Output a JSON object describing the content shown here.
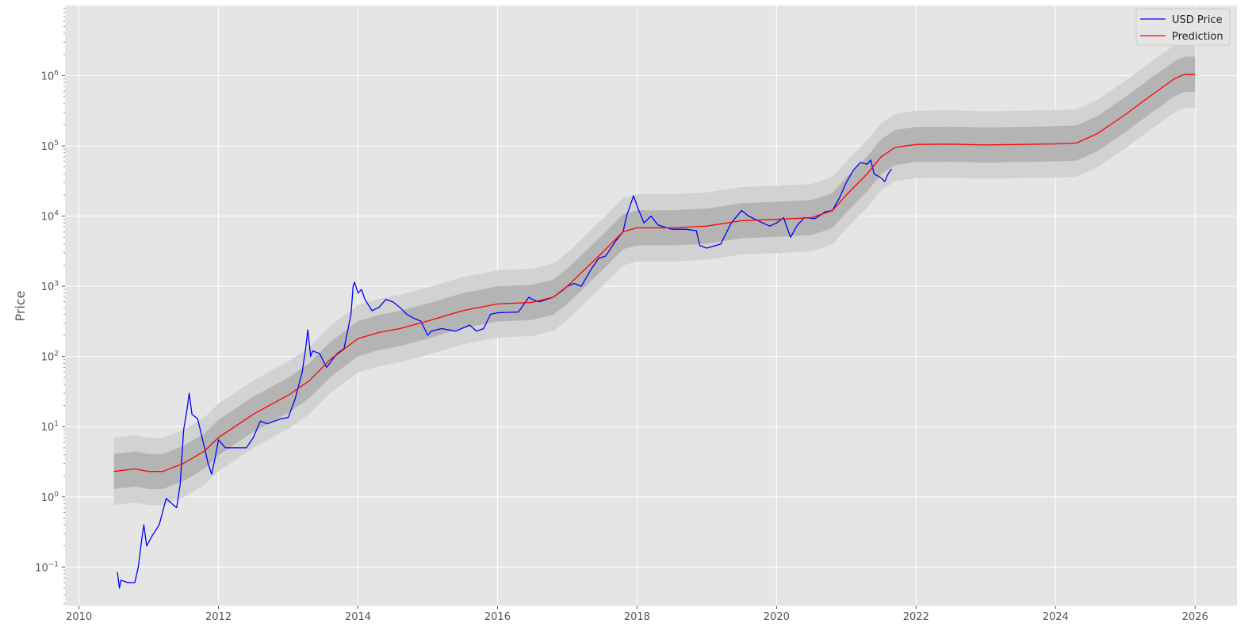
{
  "chart_data": {
    "type": "line",
    "title": "",
    "xlabel": "",
    "ylabel": "Price",
    "yscale": "log",
    "grid": true,
    "legend_position": "top-right",
    "xlim": [
      2009.8,
      2026.6
    ],
    "ylim_log10": [
      -1.55,
      7.0
    ],
    "x_ticks": [
      2010,
      2012,
      2014,
      2016,
      2018,
      2020,
      2022,
      2024,
      2026
    ],
    "x_tick_labels": [
      "2010",
      "2012",
      "2014",
      "2016",
      "2018",
      "2020",
      "2022",
      "2024",
      "2026"
    ],
    "y_ticks_log10": [
      -1,
      0,
      1,
      2,
      3,
      4,
      5,
      6
    ],
    "y_tick_labels": [
      {
        "base": "10",
        "exp": "−1"
      },
      {
        "base": "10",
        "exp": "0"
      },
      {
        "base": "10",
        "exp": "1"
      },
      {
        "base": "10",
        "exp": "2"
      },
      {
        "base": "10",
        "exp": "3"
      },
      {
        "base": "10",
        "exp": "4"
      },
      {
        "base": "10",
        "exp": "5"
      },
      {
        "base": "10",
        "exp": "6"
      }
    ],
    "bands": {
      "inner_log10_halfwidth": 0.25,
      "outer_log10_halfwidth": 0.48,
      "inner_color": "#b4b4b4",
      "outer_color": "#d2d2d2"
    },
    "series": [
      {
        "name": "USD Price",
        "color": "#0000ff",
        "points": [
          [
            2010.55,
            0.085
          ],
          [
            2010.58,
            0.05
          ],
          [
            2010.6,
            0.065
          ],
          [
            2010.7,
            0.06
          ],
          [
            2010.8,
            0.06
          ],
          [
            2010.85,
            0.1
          ],
          [
            2010.9,
            0.25
          ],
          [
            2010.93,
            0.4
          ],
          [
            2010.97,
            0.2
          ],
          [
            2011.05,
            0.28
          ],
          [
            2011.15,
            0.4
          ],
          [
            2011.25,
            0.95
          ],
          [
            2011.3,
            0.85
          ],
          [
            2011.4,
            0.7
          ],
          [
            2011.45,
            1.5
          ],
          [
            2011.5,
            9
          ],
          [
            2011.55,
            18
          ],
          [
            2011.58,
            30
          ],
          [
            2011.62,
            15
          ],
          [
            2011.7,
            13
          ],
          [
            2011.8,
            5
          ],
          [
            2011.85,
            3
          ],
          [
            2011.9,
            2.1
          ],
          [
            2011.95,
            3.5
          ],
          [
            2012.0,
            6.5
          ],
          [
            2012.1,
            5
          ],
          [
            2012.2,
            5
          ],
          [
            2012.4,
            5
          ],
          [
            2012.5,
            7
          ],
          [
            2012.6,
            12
          ],
          [
            2012.7,
            11
          ],
          [
            2012.8,
            12
          ],
          [
            2012.9,
            13
          ],
          [
            2013.0,
            13.5
          ],
          [
            2013.1,
            25
          ],
          [
            2013.2,
            60
          ],
          [
            2013.25,
            130
          ],
          [
            2013.28,
            240
          ],
          [
            2013.32,
            100
          ],
          [
            2013.35,
            120
          ],
          [
            2013.45,
            110
          ],
          [
            2013.55,
            70
          ],
          [
            2013.7,
            110
          ],
          [
            2013.8,
            130
          ],
          [
            2013.9,
            400
          ],
          [
            2013.93,
            1000
          ],
          [
            2013.95,
            1150
          ],
          [
            2014.0,
            800
          ],
          [
            2014.05,
            900
          ],
          [
            2014.1,
            650
          ],
          [
            2014.2,
            450
          ],
          [
            2014.3,
            500
          ],
          [
            2014.4,
            650
          ],
          [
            2014.5,
            600
          ],
          [
            2014.6,
            500
          ],
          [
            2014.7,
            400
          ],
          [
            2014.8,
            350
          ],
          [
            2014.9,
            320
          ],
          [
            2015.0,
            200
          ],
          [
            2015.05,
            230
          ],
          [
            2015.2,
            250
          ],
          [
            2015.4,
            230
          ],
          [
            2015.6,
            280
          ],
          [
            2015.7,
            230
          ],
          [
            2015.8,
            250
          ],
          [
            2015.9,
            400
          ],
          [
            2016.0,
            420
          ],
          [
            2016.3,
            430
          ],
          [
            2016.45,
            700
          ],
          [
            2016.5,
            650
          ],
          [
            2016.6,
            600
          ],
          [
            2016.8,
            700
          ],
          [
            2016.95,
            900
          ],
          [
            2017.0,
            1000
          ],
          [
            2017.1,
            1100
          ],
          [
            2017.2,
            1000
          ],
          [
            2017.35,
            1800
          ],
          [
            2017.45,
            2500
          ],
          [
            2017.55,
            2700
          ],
          [
            2017.7,
            4500
          ],
          [
            2017.8,
            6000
          ],
          [
            2017.85,
            10000
          ],
          [
            2017.95,
            19500
          ],
          [
            2018.0,
            14000
          ],
          [
            2018.1,
            8000
          ],
          [
            2018.2,
            10000
          ],
          [
            2018.3,
            7500
          ],
          [
            2018.5,
            6500
          ],
          [
            2018.7,
            6500
          ],
          [
            2018.85,
            6200
          ],
          [
            2018.9,
            3800
          ],
          [
            2019.0,
            3500
          ],
          [
            2019.2,
            4000
          ],
          [
            2019.35,
            8000
          ],
          [
            2019.5,
            12000
          ],
          [
            2019.6,
            10000
          ],
          [
            2019.8,
            8000
          ],
          [
            2019.9,
            7200
          ],
          [
            2020.0,
            8000
          ],
          [
            2020.1,
            9500
          ],
          [
            2020.2,
            5000
          ],
          [
            2020.3,
            7500
          ],
          [
            2020.4,
            9500
          ],
          [
            2020.55,
            9200
          ],
          [
            2020.7,
            11500
          ],
          [
            2020.8,
            12000
          ],
          [
            2020.9,
            18000
          ],
          [
            2021.0,
            30000
          ],
          [
            2021.1,
            45000
          ],
          [
            2021.2,
            58000
          ],
          [
            2021.3,
            55000
          ],
          [
            2021.35,
            63000
          ],
          [
            2021.4,
            40000
          ],
          [
            2021.5,
            35000
          ],
          [
            2021.55,
            31000
          ],
          [
            2021.6,
            40000
          ],
          [
            2021.65,
            47000
          ]
        ]
      },
      {
        "name": "Prediction",
        "color": "#ff0000",
        "points": [
          [
            2010.5,
            2.3
          ],
          [
            2010.8,
            2.5
          ],
          [
            2011.0,
            2.3
          ],
          [
            2011.2,
            2.3
          ],
          [
            2011.5,
            3.0
          ],
          [
            2011.8,
            4.5
          ],
          [
            2012.0,
            7
          ],
          [
            2012.5,
            15
          ],
          [
            2012.8,
            22
          ],
          [
            2013.0,
            28
          ],
          [
            2013.3,
            45
          ],
          [
            2013.6,
            90
          ],
          [
            2014.0,
            180
          ],
          [
            2014.3,
            220
          ],
          [
            2014.6,
            250
          ],
          [
            2015.0,
            320
          ],
          [
            2015.5,
            450
          ],
          [
            2016.0,
            560
          ],
          [
            2016.5,
            590
          ],
          [
            2016.8,
            700
          ],
          [
            2017.0,
            1000
          ],
          [
            2017.5,
            3000
          ],
          [
            2017.8,
            6000
          ],
          [
            2018.0,
            6800
          ],
          [
            2018.5,
            6800
          ],
          [
            2019.0,
            7200
          ],
          [
            2019.5,
            8600
          ],
          [
            2020.0,
            9000
          ],
          [
            2020.5,
            9500
          ],
          [
            2020.8,
            12000
          ],
          [
            2021.0,
            20000
          ],
          [
            2021.3,
            40000
          ],
          [
            2021.5,
            70000
          ],
          [
            2021.7,
            95000
          ],
          [
            2022.0,
            105000
          ],
          [
            2022.5,
            106000
          ],
          [
            2023.0,
            103000
          ],
          [
            2023.5,
            105000
          ],
          [
            2024.0,
            107000
          ],
          [
            2024.3,
            110000
          ],
          [
            2024.6,
            150000
          ],
          [
            2025.0,
            280000
          ],
          [
            2025.4,
            550000
          ],
          [
            2025.7,
            900000
          ],
          [
            2025.85,
            1050000
          ],
          [
            2026.0,
            1050000
          ]
        ]
      }
    ]
  }
}
